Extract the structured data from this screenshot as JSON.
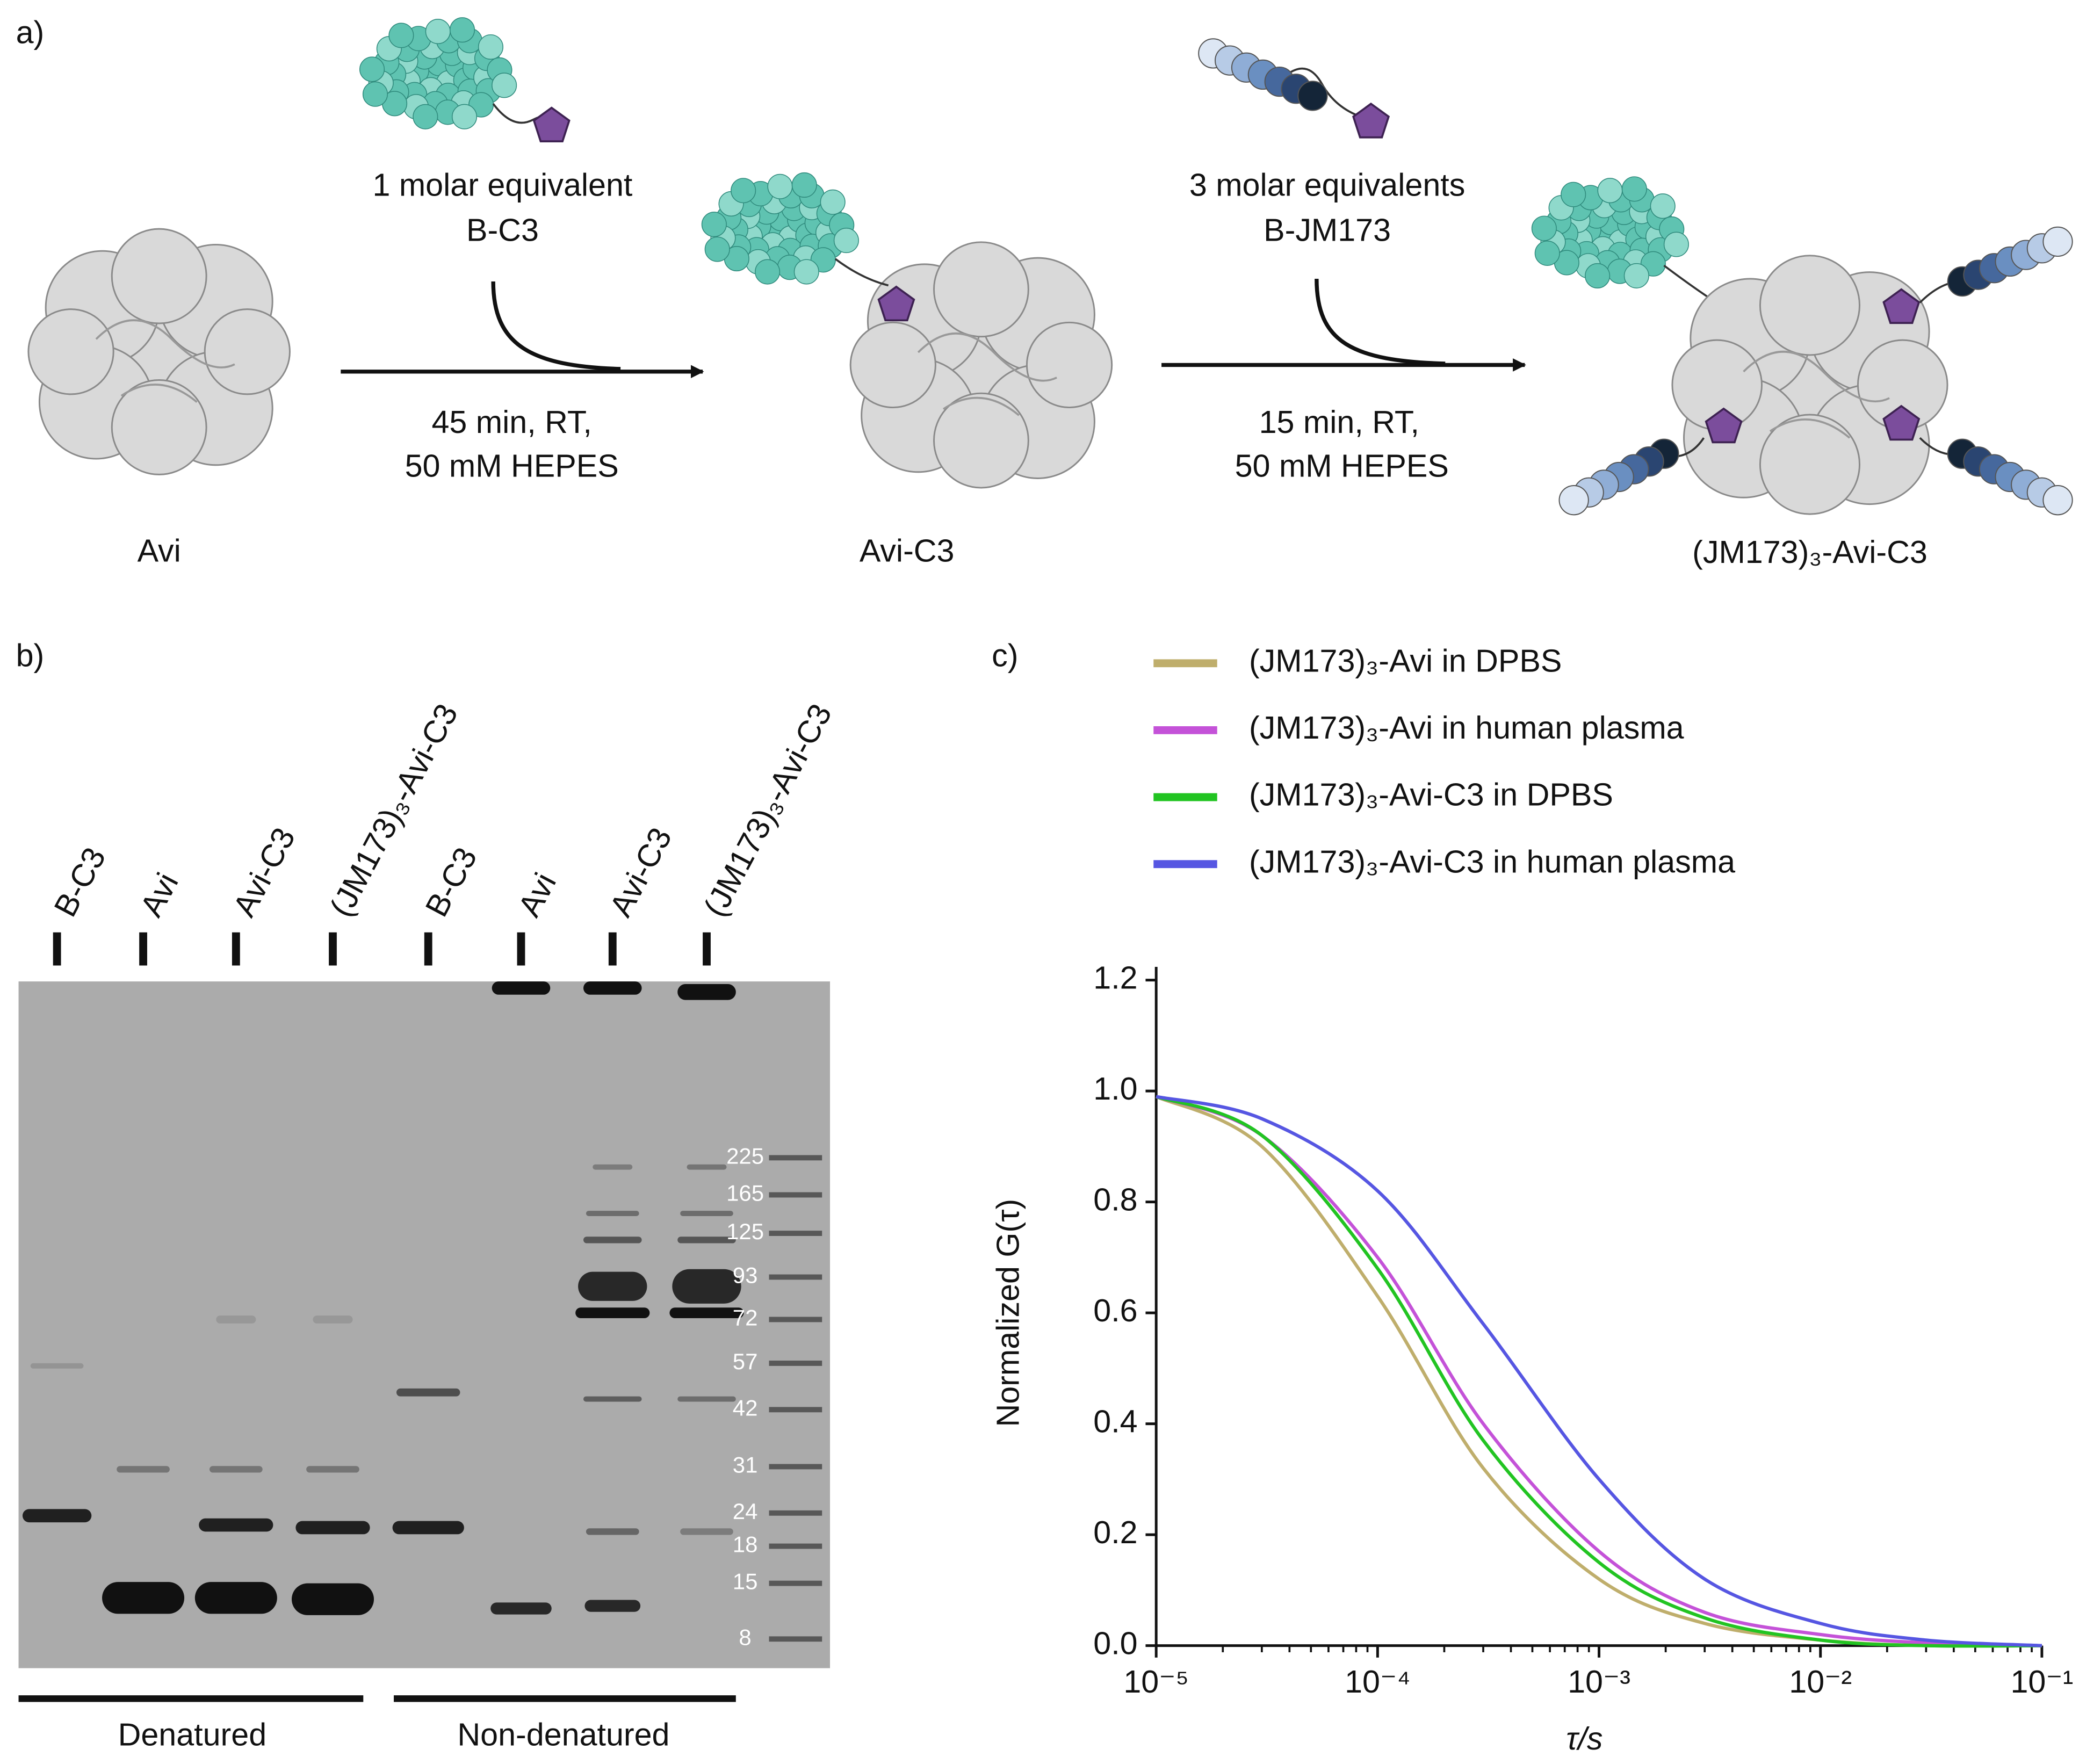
{
  "panel_a": {
    "label": "a)",
    "reagent_1": [
      "1 molar equivalent",
      "B-C3"
    ],
    "conditions_1": [
      "45 min, RT,",
      "50 mM HEPES"
    ],
    "reagent_2": [
      "3 molar equivalents",
      "B-JM173"
    ],
    "conditions_2": [
      "15 min, RT,",
      "50 mM HEPES"
    ],
    "products": [
      "Avi",
      "Avi-C3",
      "(JM173)₃-Avi-C3"
    ]
  },
  "panel_b": {
    "label": "b)",
    "lanes": [
      "B-C3",
      "Avi",
      "Avi-C3",
      "(JM173)₃-Avi-C3",
      "B-C3",
      "Avi",
      "Avi-C3",
      "(JM173)₃-Avi-C3"
    ],
    "marker_sizes": [
      225,
      165,
      125,
      93,
      72,
      57,
      42,
      31,
      24,
      18,
      15,
      8
    ],
    "groups": [
      "Denatured",
      "Non-denatured"
    ]
  },
  "panel_c": {
    "label": "c)"
  },
  "chart_data": {
    "type": "line",
    "x_label": "τ/s",
    "y_label": "Normalized G(τ)",
    "log_x": true,
    "x": [
      1e-05,
      3e-05,
      0.0001,
      0.0003,
      0.001,
      0.003,
      0.01,
      0.03,
      0.1
    ],
    "series": [
      {
        "name": "(JM173)₃-Avi in DPBS",
        "color": "#bfae6c",
        "values": [
          0.99,
          0.9,
          0.63,
          0.32,
          0.12,
          0.04,
          0.01,
          0.0,
          0.0
        ]
      },
      {
        "name": "(JM173)₃-Avi in human plasma",
        "color": "#c452d8",
        "values": [
          0.99,
          0.92,
          0.7,
          0.4,
          0.17,
          0.06,
          0.02,
          0.005,
          0.0
        ]
      },
      {
        "name": "(JM173)₃-Avi-C3 in DPBS",
        "color": "#22c422",
        "values": [
          0.99,
          0.92,
          0.68,
          0.37,
          0.15,
          0.05,
          0.01,
          0.0,
          0.0
        ]
      },
      {
        "name": "(JM173)₃-Avi-C3 in human plasma",
        "color": "#5656e2",
        "values": [
          0.99,
          0.95,
          0.82,
          0.58,
          0.3,
          0.12,
          0.04,
          0.01,
          0.0
        ]
      }
    ],
    "xlim": [
      1e-05,
      0.1
    ],
    "xticks": [
      {
        "value": 1e-05,
        "label": "10⁻⁵"
      },
      {
        "value": 0.0001,
        "label": "10⁻⁴"
      },
      {
        "value": 0.001,
        "label": "10⁻³"
      },
      {
        "value": 0.01,
        "label": "10⁻²"
      },
      {
        "value": 0.1,
        "label": "10⁻¹"
      }
    ],
    "ylim": [
      0,
      1.2
    ],
    "yticks": [
      {
        "value": 0,
        "label": "0.0"
      },
      {
        "value": 0.2,
        "label": "0.2"
      },
      {
        "value": 0.4,
        "label": "0.4"
      },
      {
        "value": 0.6,
        "label": "0.6"
      },
      {
        "value": 0.8,
        "label": "0.8"
      },
      {
        "value": 1.0,
        "label": "1.0"
      },
      {
        "value": 1.2,
        "label": "1.2"
      }
    ]
  }
}
